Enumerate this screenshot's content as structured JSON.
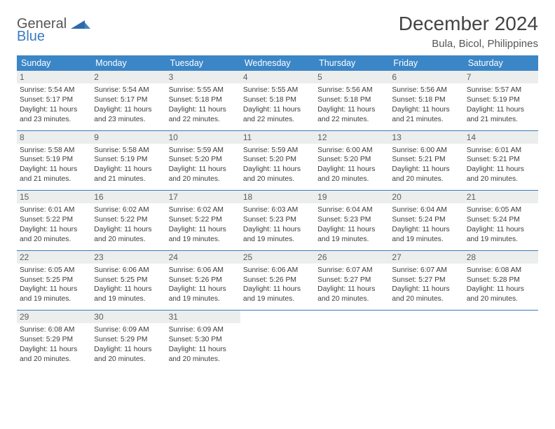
{
  "logo": {
    "line1": "General",
    "line2": "Blue"
  },
  "title": "December 2024",
  "subtitle": "Bula, Bicol, Philippines",
  "colors": {
    "header_bg": "#3b86c7",
    "accent": "#3b7bbf",
    "daynum_bg": "#eceded",
    "text": "#3d3d3d"
  },
  "daysOfWeek": [
    "Sunday",
    "Monday",
    "Tuesday",
    "Wednesday",
    "Thursday",
    "Friday",
    "Saturday"
  ],
  "weeks": [
    [
      {
        "n": "1",
        "sunrise": "5:54 AM",
        "sunset": "5:17 PM",
        "daylight": "11 hours and 23 minutes."
      },
      {
        "n": "2",
        "sunrise": "5:54 AM",
        "sunset": "5:17 PM",
        "daylight": "11 hours and 23 minutes."
      },
      {
        "n": "3",
        "sunrise": "5:55 AM",
        "sunset": "5:18 PM",
        "daylight": "11 hours and 22 minutes."
      },
      {
        "n": "4",
        "sunrise": "5:55 AM",
        "sunset": "5:18 PM",
        "daylight": "11 hours and 22 minutes."
      },
      {
        "n": "5",
        "sunrise": "5:56 AM",
        "sunset": "5:18 PM",
        "daylight": "11 hours and 22 minutes."
      },
      {
        "n": "6",
        "sunrise": "5:56 AM",
        "sunset": "5:18 PM",
        "daylight": "11 hours and 21 minutes."
      },
      {
        "n": "7",
        "sunrise": "5:57 AM",
        "sunset": "5:19 PM",
        "daylight": "11 hours and 21 minutes."
      }
    ],
    [
      {
        "n": "8",
        "sunrise": "5:58 AM",
        "sunset": "5:19 PM",
        "daylight": "11 hours and 21 minutes."
      },
      {
        "n": "9",
        "sunrise": "5:58 AM",
        "sunset": "5:19 PM",
        "daylight": "11 hours and 21 minutes."
      },
      {
        "n": "10",
        "sunrise": "5:59 AM",
        "sunset": "5:20 PM",
        "daylight": "11 hours and 20 minutes."
      },
      {
        "n": "11",
        "sunrise": "5:59 AM",
        "sunset": "5:20 PM",
        "daylight": "11 hours and 20 minutes."
      },
      {
        "n": "12",
        "sunrise": "6:00 AM",
        "sunset": "5:20 PM",
        "daylight": "11 hours and 20 minutes."
      },
      {
        "n": "13",
        "sunrise": "6:00 AM",
        "sunset": "5:21 PM",
        "daylight": "11 hours and 20 minutes."
      },
      {
        "n": "14",
        "sunrise": "6:01 AM",
        "sunset": "5:21 PM",
        "daylight": "11 hours and 20 minutes."
      }
    ],
    [
      {
        "n": "15",
        "sunrise": "6:01 AM",
        "sunset": "5:22 PM",
        "daylight": "11 hours and 20 minutes."
      },
      {
        "n": "16",
        "sunrise": "6:02 AM",
        "sunset": "5:22 PM",
        "daylight": "11 hours and 20 minutes."
      },
      {
        "n": "17",
        "sunrise": "6:02 AM",
        "sunset": "5:22 PM",
        "daylight": "11 hours and 19 minutes."
      },
      {
        "n": "18",
        "sunrise": "6:03 AM",
        "sunset": "5:23 PM",
        "daylight": "11 hours and 19 minutes."
      },
      {
        "n": "19",
        "sunrise": "6:04 AM",
        "sunset": "5:23 PM",
        "daylight": "11 hours and 19 minutes."
      },
      {
        "n": "20",
        "sunrise": "6:04 AM",
        "sunset": "5:24 PM",
        "daylight": "11 hours and 19 minutes."
      },
      {
        "n": "21",
        "sunrise": "6:05 AM",
        "sunset": "5:24 PM",
        "daylight": "11 hours and 19 minutes."
      }
    ],
    [
      {
        "n": "22",
        "sunrise": "6:05 AM",
        "sunset": "5:25 PM",
        "daylight": "11 hours and 19 minutes."
      },
      {
        "n": "23",
        "sunrise": "6:06 AM",
        "sunset": "5:25 PM",
        "daylight": "11 hours and 19 minutes."
      },
      {
        "n": "24",
        "sunrise": "6:06 AM",
        "sunset": "5:26 PM",
        "daylight": "11 hours and 19 minutes."
      },
      {
        "n": "25",
        "sunrise": "6:06 AM",
        "sunset": "5:26 PM",
        "daylight": "11 hours and 19 minutes."
      },
      {
        "n": "26",
        "sunrise": "6:07 AM",
        "sunset": "5:27 PM",
        "daylight": "11 hours and 20 minutes."
      },
      {
        "n": "27",
        "sunrise": "6:07 AM",
        "sunset": "5:27 PM",
        "daylight": "11 hours and 20 minutes."
      },
      {
        "n": "28",
        "sunrise": "6:08 AM",
        "sunset": "5:28 PM",
        "daylight": "11 hours and 20 minutes."
      }
    ],
    [
      {
        "n": "29",
        "sunrise": "6:08 AM",
        "sunset": "5:29 PM",
        "daylight": "11 hours and 20 minutes."
      },
      {
        "n": "30",
        "sunrise": "6:09 AM",
        "sunset": "5:29 PM",
        "daylight": "11 hours and 20 minutes."
      },
      {
        "n": "31",
        "sunrise": "6:09 AM",
        "sunset": "5:30 PM",
        "daylight": "11 hours and 20 minutes."
      },
      null,
      null,
      null,
      null
    ]
  ],
  "labels": {
    "sunrise": "Sunrise:",
    "sunset": "Sunset:",
    "daylight": "Daylight:"
  }
}
